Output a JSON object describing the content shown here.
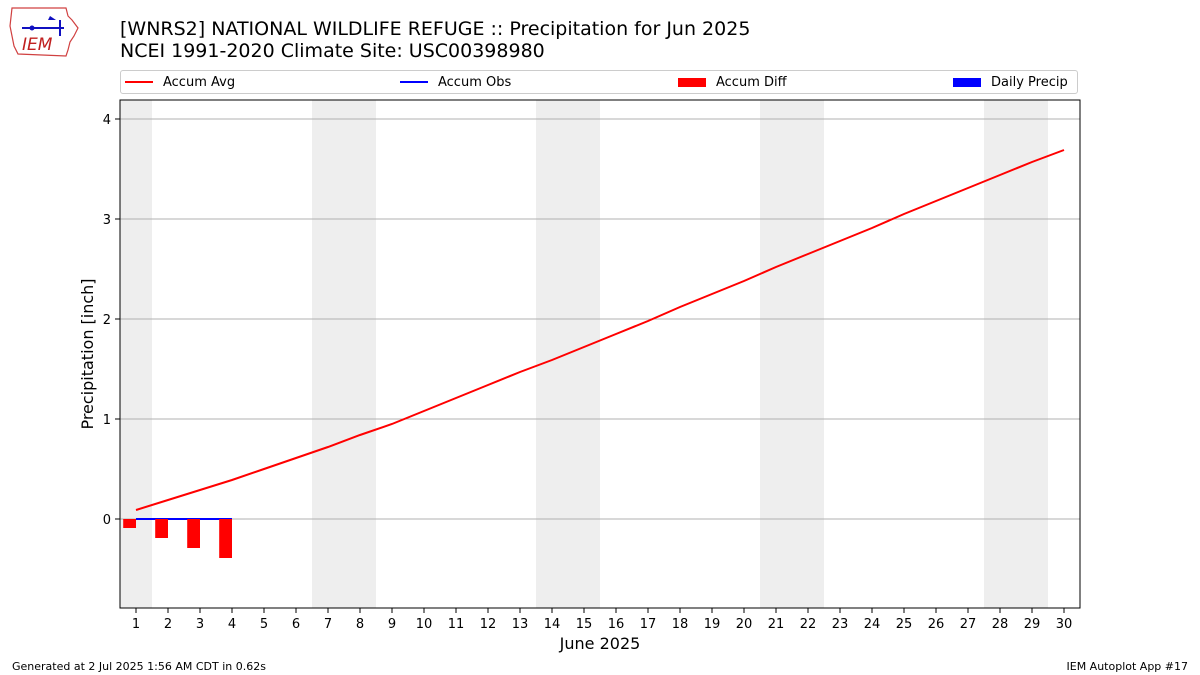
{
  "header": {
    "title_line1": "[WNRS2] NATIONAL WILDLIFE REFUGE :: Precipitation for Jun 2025",
    "title_line2": "NCEI 1991-2020 Climate Site: USC00398980",
    "logo_text": "IEM"
  },
  "legend": {
    "accum_avg": "Accum Avg",
    "accum_obs": "Accum Obs",
    "accum_diff": "Accum Diff",
    "daily_precip": "Daily Precip"
  },
  "footer": {
    "generated": "Generated at 2 Jul 2025 1:56 AM CDT in 0.62s",
    "app": "IEM Autoplot App #17"
  },
  "colors": {
    "accum_avg": "#ff0000",
    "accum_obs": "#0000ff",
    "accum_diff": "#ff0000",
    "daily_precip": "#0000ff",
    "weekend_shade": "#eeeeee",
    "grid": "#b0b0b0"
  },
  "chart_data": {
    "type": "line",
    "title": "[WNRS2] NATIONAL WILDLIFE REFUGE :: Precipitation for Jun 2025",
    "subtitle": "NCEI 1991-2020 Climate Site: USC00398980",
    "xlabel": "June 2025",
    "ylabel": "Precipitation [inch]",
    "x": [
      1,
      2,
      3,
      4,
      5,
      6,
      7,
      8,
      9,
      10,
      11,
      12,
      13,
      14,
      15,
      16,
      17,
      18,
      19,
      20,
      21,
      22,
      23,
      24,
      25,
      26,
      27,
      28,
      29,
      30
    ],
    "xlim": [
      0.5,
      30.5
    ],
    "ylim": [
      -0.89,
      4.19
    ],
    "yticks": [
      0,
      1,
      2,
      3,
      4
    ],
    "grid": "y",
    "legend_position": "top",
    "weekend_shading": [
      [
        0.5,
        1.5
      ],
      [
        6.5,
        8.5
      ],
      [
        13.5,
        15.5
      ],
      [
        20.5,
        22.5
      ],
      [
        27.5,
        29.5
      ]
    ],
    "series": [
      {
        "name": "Accum Avg",
        "kind": "line",
        "values": [
          0.09,
          0.19,
          0.29,
          0.39,
          0.5,
          0.61,
          0.72,
          0.84,
          0.95,
          1.08,
          1.21,
          1.34,
          1.47,
          1.59,
          1.72,
          1.85,
          1.98,
          2.12,
          2.25,
          2.38,
          2.52,
          2.65,
          2.78,
          2.91,
          3.05,
          3.18,
          3.31,
          3.44,
          3.57,
          3.69
        ]
      },
      {
        "name": "Accum Obs",
        "kind": "line",
        "x": [
          1,
          2,
          3,
          4
        ],
        "values": [
          0,
          0,
          0,
          0
        ]
      },
      {
        "name": "Accum Diff",
        "kind": "bar",
        "x": [
          1,
          2,
          3,
          4
        ],
        "values": [
          -0.09,
          -0.19,
          -0.29,
          -0.39
        ]
      },
      {
        "name": "Daily Precip",
        "kind": "bar",
        "x": [
          1,
          2,
          3,
          4
        ],
        "values": [
          0,
          0,
          0,
          0
        ]
      }
    ]
  }
}
